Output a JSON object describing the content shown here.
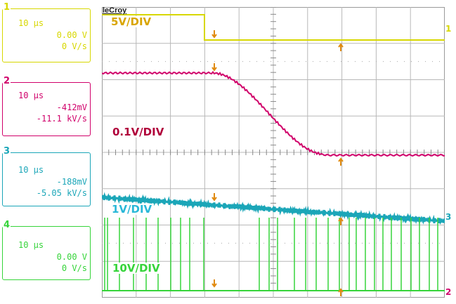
{
  "brand": "leCroy",
  "channels": [
    {
      "num": "1",
      "color": "#d7d700",
      "timebase": "10 µs",
      "offset": "0.00 V",
      "slope": "0 V/s",
      "scale_label": "5V/DIV",
      "scale_color": "#d9a500"
    },
    {
      "num": "2",
      "color": "#d0006a",
      "timebase": "10 µs",
      "offset": "-412mV",
      "slope": "-11.1 kV/s",
      "scale_label": "0.1V/DIV",
      "scale_color": "#b0003a"
    },
    {
      "num": "3",
      "color": "#1ba6b8",
      "timebase": "10 µs",
      "offset": "-188mV",
      "slope": "-5.05 kV/s",
      "scale_label": "1V/DIV",
      "scale_color": "#2ab8d8"
    },
    {
      "num": "4",
      "color": "#36d43a",
      "timebase": "10 µs",
      "offset": "0.00 V",
      "slope": "0 V/s",
      "scale_label": "10V/DIV",
      "scale_color": "#36d43a"
    }
  ],
  "right_markers": [
    "1",
    "3",
    "2"
  ],
  "cursor_color": "#e08a10"
}
